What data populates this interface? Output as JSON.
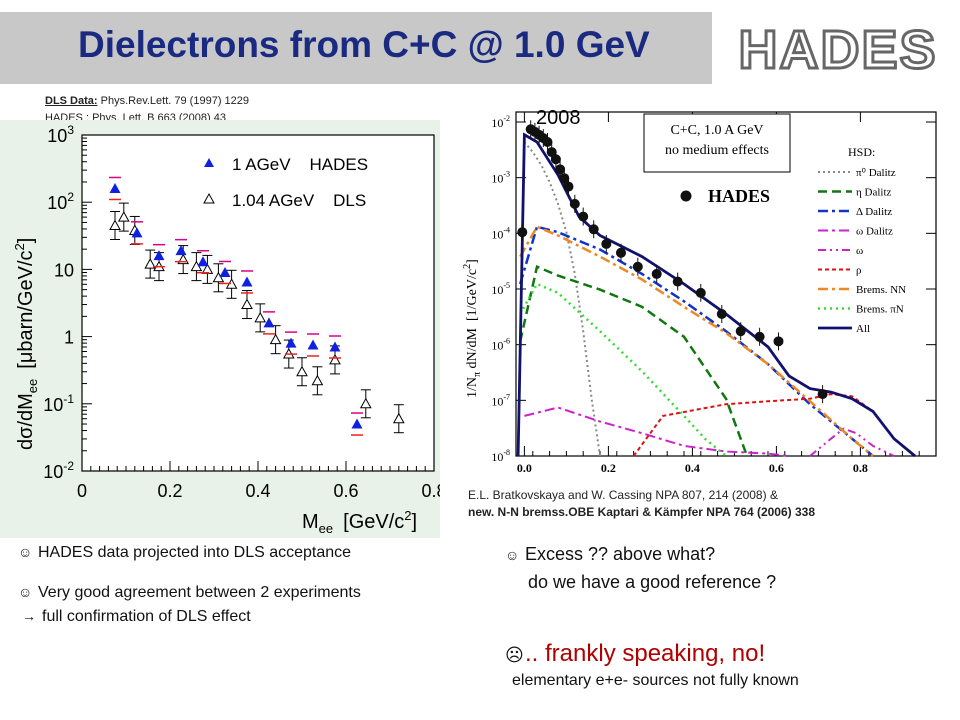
{
  "slide": {
    "title": "Dielectrons from  C+C @ 1.0 GeV",
    "logo_text": "HADES",
    "ref_line1_label": "DLS Data:",
    "ref_line1_text": " Phys.Rev.Lett. 79 (1997) 1229",
    "ref_line2": "HADES : Phys. Lett. B 663 (2008) 43",
    "cite_line1": "E.L. Bratkovskaya and W. Cassing NPA 807, 214 (2008) &",
    "cite_line2": "new. N-N bremss.OBE Kaptari & Kämpfer NPA 764 (2006) 338",
    "bullet1": "HADES data projected into DLS acceptance",
    "bullet2": "Very good agreement between 2 experiments",
    "bullet2b": "full confirmation of DLS effect",
    "bullet3": "Excess ?? above what?",
    "bullet3b": "do we have a good reference ?",
    "bullet4": ".. frankly speaking, no!",
    "bullet5": "elementary e+e- sources not fully known",
    "icon_smile": "smiley-icon",
    "icon_frown": "frowny-icon",
    "icon_arrow": "arrow-right-icon"
  },
  "chart_data": [
    {
      "type": "scatter",
      "xlabel": "M",
      "xlabel_sub": "ee",
      "xlabel_unit": "[GeV/c",
      "xlabel_unit_sup": "2",
      "xlabel_unit_close": "]",
      "ylabel": "dσ/dM",
      "ylabel_sub": "ee",
      "ylabel_unit": "[μbarn/GeV/c",
      "ylabel_unit_sup": "2",
      "ylabel_unit_close": "]",
      "xlim": [
        0,
        0.8
      ],
      "ylim": [
        0.01,
        1000
      ],
      "yscale": "log",
      "x_ticks": [
        "0",
        "0.2",
        "0.4",
        "0.6",
        "0.8"
      ],
      "y_ticks": [
        {
          "base": "10",
          "exp": "3"
        },
        {
          "base": "10",
          "exp": "2"
        },
        {
          "base": "10",
          "exp": ""
        },
        {
          "base": "1",
          "exp": ""
        },
        {
          "base": "10",
          "exp": "-1"
        },
        {
          "base": "10",
          "exp": "-2"
        }
      ],
      "series": [
        {
          "name": "1 AGeV    HADES",
          "marker": "filled-triangle",
          "color": "#1020e0",
          "x": [
            0.075,
            0.125,
            0.175,
            0.225,
            0.275,
            0.325,
            0.375,
            0.425,
            0.475,
            0.525,
            0.575,
            0.625
          ],
          "y": [
            160,
            35,
            16,
            19,
            13,
            9,
            6.5,
            1.6,
            0.8,
            0.75,
            0.7,
            0.05
          ]
        },
        {
          "name": "1.04 AGeV    DLS",
          "marker": "open-triangle",
          "color": "#000000",
          "x": [
            0.075,
            0.095,
            0.12,
            0.155,
            0.175,
            0.23,
            0.26,
            0.285,
            0.31,
            0.34,
            0.375,
            0.405,
            0.44,
            0.47,
            0.5,
            0.535,
            0.575,
            0.645,
            0.72
          ],
          "y": [
            45,
            60,
            38,
            12,
            11,
            14,
            11,
            10,
            7.5,
            6,
            3,
            1.9,
            0.9,
            0.55,
            0.3,
            0.22,
            0.45,
            0.1,
            0.06
          ]
        }
      ]
    },
    {
      "type": "line",
      "year_label": "2008",
      "info_line1": "C+C, 1.0 A GeV",
      "info_line2": "no medium effects",
      "ylabel": "1/N",
      "ylabel_sub": "π",
      "ylabel_rest": " dN/dM  [1/GeV/c",
      "ylabel_sup": "2",
      "ylabel_close": "]",
      "xlim": [
        0,
        1.0
      ],
      "ylim": [
        1e-08,
        0.01
      ],
      "yscale": "log",
      "x_ticks": [
        "0.0",
        "0.2",
        "0.4",
        "0.6",
        "0.8"
      ],
      "y_ticks": [
        {
          "base": "10",
          "exp": "-2"
        },
        {
          "base": "10",
          "exp": "-3"
        },
        {
          "base": "10",
          "exp": "-4"
        },
        {
          "base": "10",
          "exp": "-5"
        },
        {
          "base": "10",
          "exp": "-6"
        },
        {
          "base": "10",
          "exp": "-7"
        },
        {
          "base": "10",
          "exp": "-8"
        }
      ],
      "legend_title": "HSD:",
      "legend_title_dot": "HADES",
      "series": [
        {
          "name": "π⁰ Dalitz",
          "color": "#888888",
          "dash": "2,3",
          "width": 2,
          "x": [
            0.02,
            0.04,
            0.06,
            0.08,
            0.1,
            0.12,
            0.14,
            0.16,
            0.18,
            0.2
          ],
          "y": [
            0.003,
            0.002,
            0.0012,
            0.0006,
            0.00025,
            8e-05,
            1.5e-05,
            1.5e-06,
            1e-07,
            1e-08
          ]
        },
        {
          "name": "η Dalitz",
          "color": "#117711",
          "dash": "9,5",
          "width": 2.5,
          "x": [
            0.01,
            0.05,
            0.1,
            0.2,
            0.3,
            0.4,
            0.5,
            0.55
          ],
          "y": [
            1e-06,
            2e-05,
            1.4e-05,
            8e-06,
            4e-06,
            1.2e-06,
            1e-07,
            1e-08
          ]
        },
        {
          "name": "Δ Dalitz",
          "color": "#1133cc",
          "dash": "10,4,3,4",
          "width": 2.5,
          "x": [
            0.01,
            0.05,
            0.1,
            0.2,
            0.3,
            0.4,
            0.5,
            0.6,
            0.7,
            0.8,
            0.85
          ],
          "y": [
            1e-05,
            0.0001,
            8e-05,
            4e-05,
            1.5e-05,
            5e-06,
            1.5e-06,
            4e-07,
            8e-08,
            2e-08,
            1e-08
          ]
        },
        {
          "name": "ω Dalitz",
          "color": "#cc22cc",
          "dash": "10,4,3,4",
          "width": 2,
          "x": [
            0.02,
            0.1,
            0.2,
            0.3,
            0.4,
            0.5,
            0.6,
            0.65
          ],
          "y": [
            5e-08,
            7e-08,
            4e-08,
            2.5e-08,
            1.5e-08,
            1.2e-08,
            1.1e-08,
            1e-08
          ]
        },
        {
          "name": "ω",
          "color": "#cc22cc",
          "dash": "8,4,2,4,2,4",
          "width": 2,
          "x": [
            0.7,
            0.75,
            0.78,
            0.81,
            0.85,
            0.9
          ],
          "y": [
            1e-08,
            2e-08,
            3e-08,
            2.5e-08,
            1.5e-08,
            1e-08
          ]
        },
        {
          "name": "ρ",
          "color": "#dd1111",
          "dash": "4,3",
          "width": 2,
          "x": [
            0.28,
            0.35,
            0.5,
            0.6,
            0.7,
            0.75,
            0.8,
            0.85,
            0.9,
            0.95
          ],
          "y": [
            1e-08,
            5e-08,
            8e-08,
            9e-08,
            1e-07,
            1.2e-07,
            1.1e-07,
            6e-08,
            2e-08,
            1e-08
          ]
        },
        {
          "name": "Brems. NN",
          "color": "#ee8822",
          "dash": "10,4,3,4",
          "width": 2.5,
          "x": [
            0.01,
            0.05,
            0.1,
            0.2,
            0.3,
            0.4,
            0.5,
            0.6,
            0.7,
            0.8,
            0.85
          ],
          "y": [
            3e-05,
            0.0001,
            7e-05,
            3e-05,
            1.2e-05,
            4e-06,
            1.4e-06,
            4e-07,
            9e-08,
            2e-08,
            1e-08
          ]
        },
        {
          "name": "Brems. πN",
          "color": "#33dd33",
          "dash": "2,4",
          "width": 2.5,
          "x": [
            0.01,
            0.05,
            0.1,
            0.2,
            0.3,
            0.4,
            0.45,
            0.5
          ],
          "y": [
            3e-06,
            1e-05,
            7e-06,
            1.5e-06,
            3e-07,
            5e-08,
            2e-08,
            1e-08
          ]
        },
        {
          "name": "All",
          "color": "#11116e",
          "dash": "",
          "width": 2.8,
          "x": [
            0.005,
            0.02,
            0.05,
            0.1,
            0.15,
            0.2,
            0.3,
            0.4,
            0.5,
            0.6,
            0.65,
            0.7,
            0.75,
            0.8,
            0.85,
            0.9,
            0.95
          ],
          "y": [
            1e-08,
            0.004,
            0.003,
            0.0008,
            0.00015,
            7e-05,
            3e-05,
            1e-05,
            3e-06,
            8e-07,
            2.5e-07,
            1.5e-07,
            1.3e-07,
            1e-07,
            6e-08,
            2e-08,
            1e-08
          ]
        },
        {
          "name": "HADES",
          "marker": "filled-circle",
          "color": "#111111",
          "x": [
            0.015,
            0.035,
            0.045,
            0.055,
            0.065,
            0.075,
            0.085,
            0.095,
            0.105,
            0.115,
            0.125,
            0.14,
            0.16,
            0.185,
            0.215,
            0.25,
            0.29,
            0.335,
            0.385,
            0.44,
            0.49,
            0.535,
            0.58,
            0.625,
            0.73
          ],
          "y": [
            8e-05,
            0.005,
            0.0045,
            0.004,
            0.0035,
            0.003,
            0.002,
            0.0015,
            0.001,
            0.0007,
            0.0005,
            0.00025,
            0.00015,
            9e-05,
            5e-05,
            3.5e-05,
            2e-05,
            1.5e-05,
            1.1e-05,
            7e-06,
            3e-06,
            1.5e-06,
            1.2e-06,
            1e-06,
            1.2e-07
          ]
        }
      ]
    }
  ]
}
